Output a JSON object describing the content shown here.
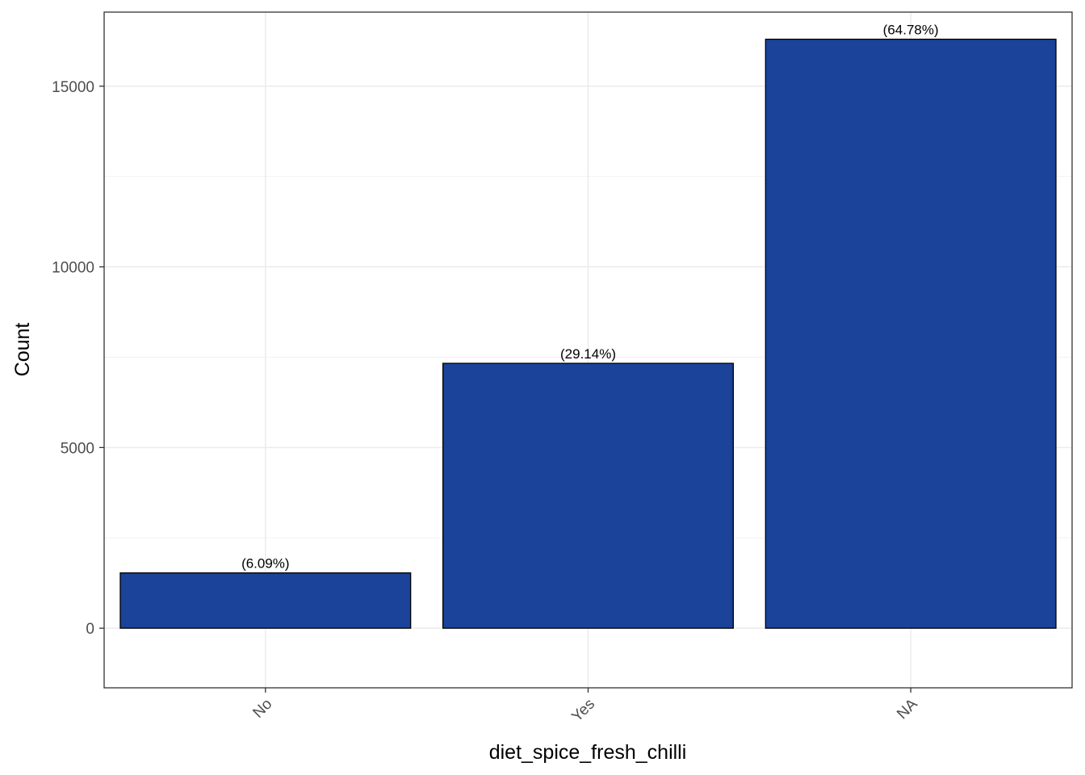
{
  "chart_data": {
    "type": "bar",
    "categories": [
      "No",
      "Yes",
      "NA"
    ],
    "values": [
      1530,
      7330,
      16300
    ],
    "data_labels": [
      "(6.09%)",
      "(29.14%)",
      "(64.78%)"
    ],
    "title": "",
    "xlabel": "diet_spice_fresh_chilli",
    "ylabel": "Count",
    "ylim": [
      -1650,
      17050
    ],
    "yticks": [
      0,
      5000,
      10000,
      15000
    ],
    "ytick_labels": [
      "0",
      "5000",
      "10000",
      "15000"
    ],
    "grid": true,
    "bar_color": "#1A4399",
    "bar_edge_color": "#000000",
    "x_tick_rotation_deg": 45
  }
}
